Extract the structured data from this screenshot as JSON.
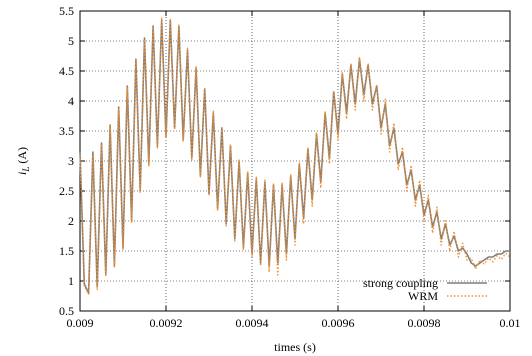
{
  "chart_data": {
    "type": "line",
    "xlabel": "times (s)",
    "ylabel_main": "i",
    "ylabel_sub": "L",
    "ylabel_unit": "(A)",
    "xlim": [
      0.009,
      0.01
    ],
    "ylim": [
      0.5,
      5.5
    ],
    "x_ticks": [
      0.009,
      0.0092,
      0.0094,
      0.0096,
      0.0098,
      0.01
    ],
    "x_tick_labels": [
      "0.009",
      "0.0092",
      "0.0094",
      "0.0096",
      "0.0098",
      "0.01"
    ],
    "y_ticks": [
      0.5,
      1,
      1.5,
      2,
      2.5,
      3,
      3.5,
      4,
      4.5,
      5,
      5.5
    ],
    "y_tick_labels": [
      "0.5",
      "1",
      "1.5",
      "2",
      "2.5",
      "3",
      "3.5",
      "4",
      "4.5",
      "5",
      "5.5"
    ],
    "grid": true,
    "legend_position": "bottom-right",
    "series": [
      {
        "name": "strong coupling",
        "color": "#7f7f7f",
        "style": "solid",
        "x": [
          0.009,
          0.00901,
          0.00902,
          0.00903,
          0.00904,
          0.00905,
          0.00906,
          0.00907,
          0.00908,
          0.00909,
          0.0091,
          0.00911,
          0.00912,
          0.00913,
          0.00914,
          0.00915,
          0.00916,
          0.00917,
          0.00918,
          0.00919,
          0.0092,
          0.00921,
          0.00922,
          0.00923,
          0.00924,
          0.00925,
          0.00926,
          0.00927,
          0.00928,
          0.00929,
          0.0093,
          0.00931,
          0.00932,
          0.00933,
          0.00934,
          0.00935,
          0.00936,
          0.00937,
          0.00938,
          0.00939,
          0.0094,
          0.00941,
          0.00942,
          0.00943,
          0.00944,
          0.00945,
          0.00946,
          0.00947,
          0.00948,
          0.00949,
          0.0095,
          0.00951,
          0.00952,
          0.00953,
          0.00954,
          0.00955,
          0.00956,
          0.00957,
          0.00958,
          0.00959,
          0.0096,
          0.00961,
          0.00962,
          0.00963,
          0.00964,
          0.00965,
          0.00966,
          0.00967,
          0.00968,
          0.00969,
          0.0097,
          0.00971,
          0.00972,
          0.00973,
          0.00974,
          0.00975,
          0.00976,
          0.00977,
          0.00978,
          0.00979,
          0.0098,
          0.00981,
          0.00982,
          0.00983,
          0.00984,
          0.00985,
          0.00986,
          0.00987,
          0.00988,
          0.00989,
          0.0099,
          0.00991,
          0.00992,
          0.00993,
          0.00994,
          0.00995,
          0.00996,
          0.00997,
          0.00998,
          0.00999,
          0.01
        ],
        "y": [
          3.15,
          0.95,
          0.8,
          3.15,
          0.9,
          3.3,
          1.1,
          3.6,
          1.25,
          3.9,
          1.55,
          4.25,
          2.0,
          4.7,
          2.5,
          5.05,
          2.95,
          5.25,
          3.25,
          5.35,
          3.4,
          5.35,
          3.55,
          5.25,
          3.35,
          4.85,
          3.05,
          4.55,
          2.75,
          4.2,
          2.45,
          3.8,
          2.2,
          3.55,
          1.95,
          3.25,
          1.7,
          3.0,
          1.55,
          2.8,
          1.45,
          2.7,
          1.3,
          2.65,
          1.25,
          2.6,
          1.3,
          2.6,
          1.45,
          2.75,
          1.7,
          2.95,
          2.05,
          3.2,
          2.35,
          3.45,
          2.65,
          3.8,
          3.05,
          4.15,
          3.45,
          4.45,
          3.8,
          4.6,
          3.95,
          4.7,
          4.1,
          4.6,
          3.95,
          4.25,
          3.55,
          3.95,
          3.25,
          3.55,
          2.95,
          3.15,
          2.6,
          2.85,
          2.35,
          2.6,
          2.1,
          2.35,
          1.9,
          2.15,
          1.7,
          1.95,
          1.6,
          1.75,
          1.5,
          1.55,
          1.45,
          1.3,
          1.25,
          1.3,
          1.35,
          1.4,
          1.4,
          1.45,
          1.45,
          1.5,
          1.5
        ],
        "note": "approximate sawtooth envelope"
      },
      {
        "name": "WRM",
        "color": "#f28e2b",
        "style": "dotted",
        "x": [
          0.009,
          0.00901,
          0.00902,
          0.00903,
          0.00904,
          0.00905,
          0.00906,
          0.00907,
          0.00908,
          0.00909,
          0.0091,
          0.00911,
          0.00912,
          0.00913,
          0.00914,
          0.00915,
          0.00916,
          0.00917,
          0.00918,
          0.00919,
          0.0092,
          0.00921,
          0.00922,
          0.00923,
          0.00924,
          0.00925,
          0.00926,
          0.00927,
          0.00928,
          0.00929,
          0.0093,
          0.00931,
          0.00932,
          0.00933,
          0.00934,
          0.00935,
          0.00936,
          0.00937,
          0.00938,
          0.00939,
          0.0094,
          0.00941,
          0.00942,
          0.00943,
          0.00944,
          0.00945,
          0.00946,
          0.00947,
          0.00948,
          0.00949,
          0.0095,
          0.00951,
          0.00952,
          0.00953,
          0.00954,
          0.00955,
          0.00956,
          0.00957,
          0.00958,
          0.00959,
          0.0096,
          0.00961,
          0.00962,
          0.00963,
          0.00964,
          0.00965,
          0.00966,
          0.00967,
          0.00968,
          0.00969,
          0.0097,
          0.00971,
          0.00972,
          0.00973,
          0.00974,
          0.00975,
          0.00976,
          0.00977,
          0.00978,
          0.00979,
          0.0098,
          0.00981,
          0.00982,
          0.00983,
          0.00984,
          0.00985,
          0.00986,
          0.00987,
          0.00988,
          0.00989,
          0.0099,
          0.00991,
          0.00992,
          0.00993,
          0.00994,
          0.00995,
          0.00996,
          0.00997,
          0.00998,
          0.00999,
          0.01
        ],
        "y": [
          3.1,
          0.92,
          0.78,
          3.1,
          0.86,
          3.28,
          1.08,
          3.58,
          1.22,
          3.88,
          1.52,
          4.23,
          1.98,
          4.68,
          2.48,
          5.03,
          2.92,
          5.23,
          3.22,
          5.38,
          3.38,
          5.38,
          3.52,
          5.28,
          3.32,
          4.88,
          3.02,
          4.58,
          2.72,
          4.23,
          2.42,
          3.83,
          2.17,
          3.58,
          1.92,
          3.28,
          1.67,
          3.03,
          1.52,
          2.83,
          1.4,
          2.73,
          1.25,
          2.68,
          1.15,
          2.63,
          1.1,
          2.63,
          1.35,
          2.78,
          1.6,
          2.98,
          1.95,
          3.23,
          2.25,
          3.48,
          2.55,
          3.83,
          2.95,
          4.18,
          3.35,
          4.48,
          3.7,
          4.63,
          3.85,
          4.73,
          4.0,
          4.63,
          3.85,
          4.28,
          3.45,
          4.03,
          3.15,
          3.63,
          2.85,
          3.23,
          2.5,
          2.93,
          2.25,
          2.68,
          2.0,
          2.43,
          1.8,
          2.23,
          1.6,
          2.03,
          1.5,
          1.83,
          1.4,
          1.63,
          1.35,
          1.38,
          1.2,
          1.35,
          1.28,
          1.38,
          1.32,
          1.42,
          1.36,
          1.46,
          1.4
        ],
        "note": "approximate sawtooth envelope"
      }
    ]
  }
}
